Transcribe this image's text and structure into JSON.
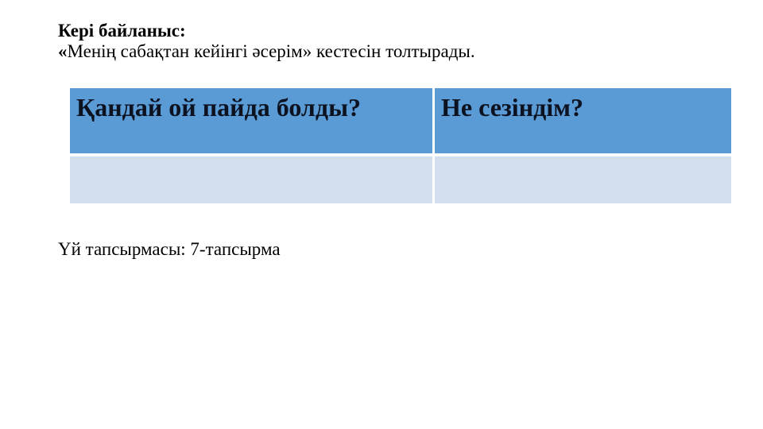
{
  "slide": {
    "colors": {
      "background": "#ffffff",
      "table_header_bg": "#5a9ad5",
      "table_row_bg": "#d3dfee",
      "table_border": "#ffffff",
      "header_text": "#0c1220",
      "body_text": "#000000"
    },
    "intro": {
      "title": "Кері байланыс:",
      "quote_open": "«",
      "body": "Менің сабақтан кейінгі әсерім» кестесін толтырады."
    },
    "table": {
      "headers": [
        "Қандай ой пайда болды?",
        "Не сезіндім?"
      ],
      "rows": [
        [
          "",
          ""
        ]
      ]
    },
    "homework": "Үй тапсырмасы: 7-тапсырма"
  }
}
